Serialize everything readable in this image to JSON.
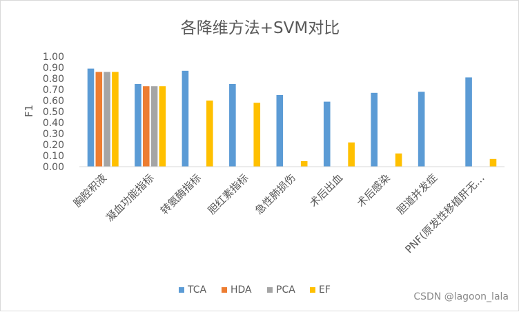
{
  "chart_data": {
    "type": "bar",
    "title": "各降维方法+SVM对比",
    "xlabel": "",
    "ylabel": "F1",
    "ylim": [
      0,
      1.0
    ],
    "yticks": [
      "0.00",
      "0.10",
      "0.20",
      "0.30",
      "0.40",
      "0.50",
      "0.60",
      "0.70",
      "0.80",
      "0.90",
      "1.00"
    ],
    "grid": false,
    "legend_position": "bottom",
    "categories": [
      "胸腔积液",
      "凝血功能指标",
      "转氨酶指标",
      "胆红素指标",
      "急性肺损伤",
      "术后出血",
      "术后感染",
      "胆道并发症",
      "PNF(原发性移植肝无…"
    ],
    "series": [
      {
        "name": "TCA",
        "color": "#5B9BD5",
        "values": [
          0.89,
          0.75,
          0.87,
          0.75,
          0.65,
          0.59,
          0.67,
          0.68,
          0.81
        ]
      },
      {
        "name": "HDA",
        "color": "#ED7D31",
        "values": [
          0.86,
          0.73,
          null,
          null,
          null,
          null,
          null,
          null,
          null
        ]
      },
      {
        "name": "PCA",
        "color": "#A5A5A5",
        "values": [
          0.86,
          0.73,
          null,
          null,
          null,
          null,
          null,
          null,
          null
        ]
      },
      {
        "name": "EF",
        "color": "#FFC000",
        "values": [
          0.86,
          0.73,
          0.6,
          0.58,
          0.05,
          0.22,
          0.12,
          null,
          0.07
        ]
      }
    ]
  },
  "watermark": "CSDN @lagoon_lala"
}
